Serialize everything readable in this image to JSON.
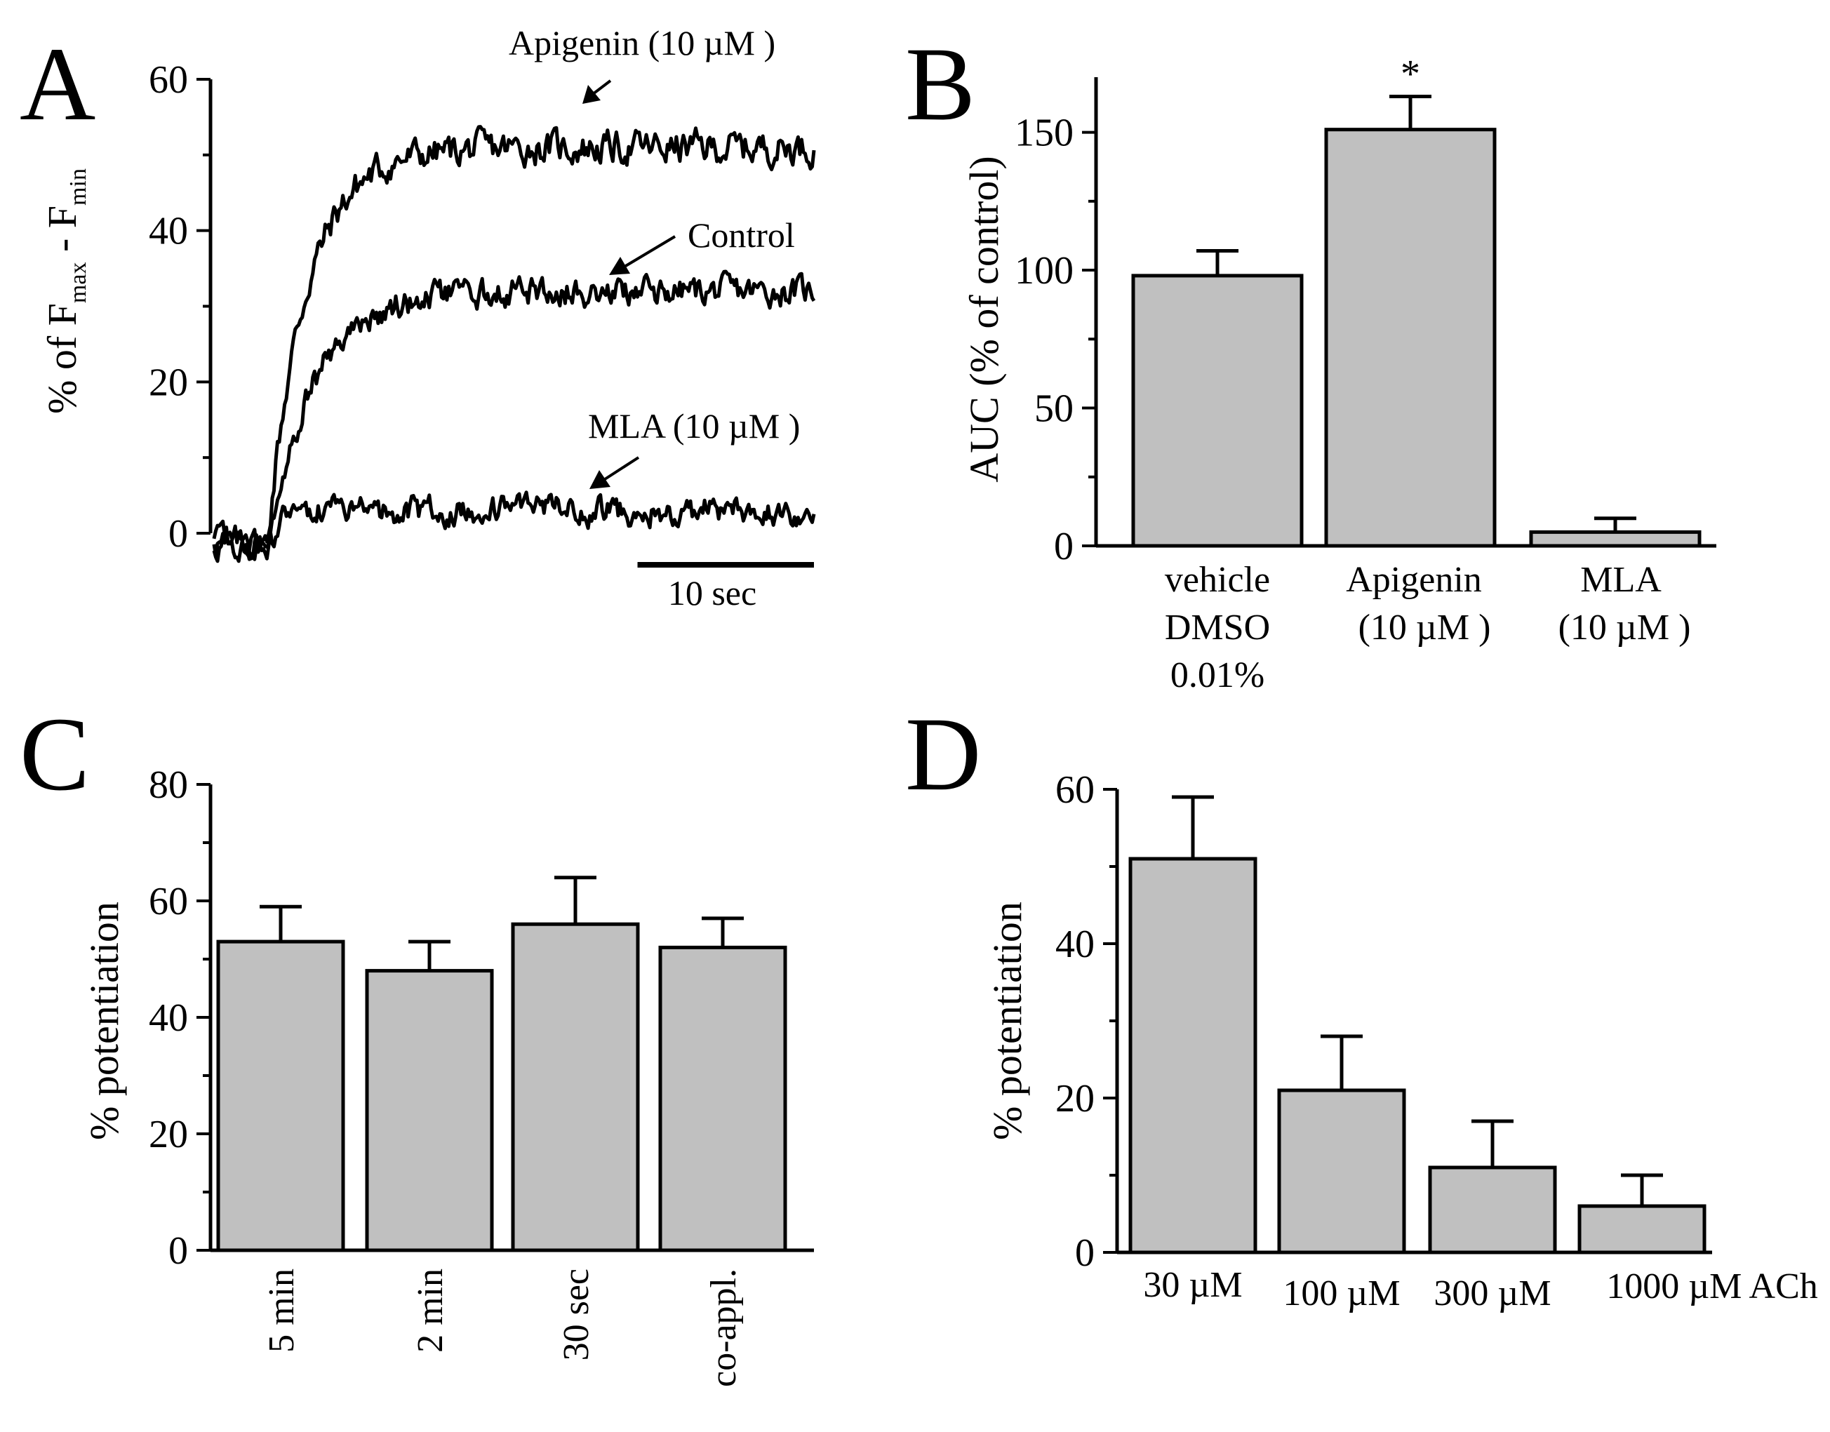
{
  "chart_data": [
    {
      "panel": "A",
      "type": "line",
      "ylabel": "% of  F",
      "ylabel_sub1": "max",
      "ylabel_mid": " - F",
      "ylabel_sub2": "min",
      "ylim": [
        0,
        60
      ],
      "yticks": [
        "0",
        "20",
        "40",
        "60"
      ],
      "duration_sec": 34,
      "onset_sec": 3,
      "scale_bar_label": "10 sec",
      "scale_bar_sec": 10,
      "series": [
        {
          "name": "Apigenin (10 µM )",
          "plateau": 51,
          "tau_sec": 2.2,
          "noise": 2.5
        },
        {
          "name": "Control",
          "plateau": 32,
          "tau_sec": 2.6,
          "noise": 2.2
        },
        {
          "name": "MLA (10 µM )",
          "plateau": 3,
          "tau_sec": 1.0,
          "noise": 2.2
        }
      ]
    },
    {
      "panel": "B",
      "type": "bar",
      "ylabel": "AUC (% of control)",
      "ylim": [
        0,
        170
      ],
      "yticks": [
        0,
        50,
        100,
        150
      ],
      "categories": [
        [
          "vehicle",
          "DMSO",
          "0.01%"
        ],
        [
          "Apigenin",
          "(10 µM )"
        ],
        [
          "MLA",
          "(10 µM )"
        ]
      ],
      "values": [
        98,
        151,
        5
      ],
      "errors": [
        9,
        12,
        5
      ],
      "significance": [
        "",
        "*",
        ""
      ]
    },
    {
      "panel": "C",
      "type": "bar",
      "ylabel": "% potentiation",
      "ylim": [
        0,
        80
      ],
      "yticks": [
        0,
        20,
        40,
        60,
        80
      ],
      "categories": [
        "5 min",
        "2 min",
        "30 sec",
        "co-appl."
      ],
      "values": [
        53,
        48,
        56,
        52
      ],
      "errors": [
        6,
        5,
        8,
        5
      ]
    },
    {
      "panel": "D",
      "type": "bar",
      "ylabel": "% potentiation",
      "ylim": [
        0,
        60
      ],
      "yticks": [
        0,
        20,
        40,
        60
      ],
      "categories": [
        "30 µM",
        "100 µM",
        "300 µM",
        "1000 µM ACh"
      ],
      "values": [
        51,
        21,
        11,
        6
      ],
      "errors": [
        8,
        7,
        6,
        4
      ]
    }
  ]
}
